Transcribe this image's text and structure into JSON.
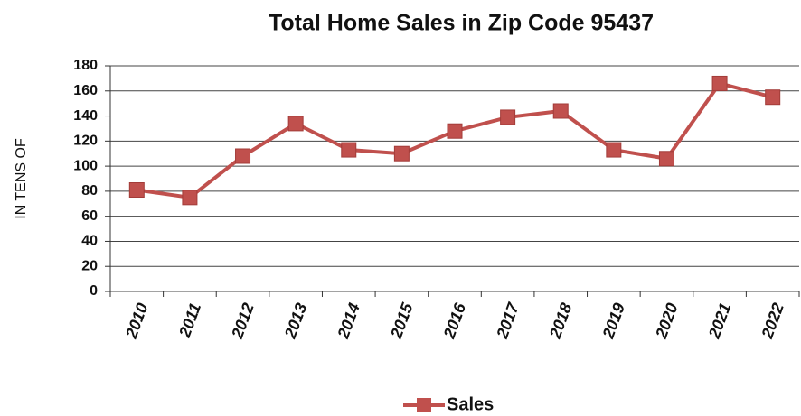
{
  "chart_data": {
    "type": "line",
    "title": "Total Home Sales in Zip Code 95437",
    "y_label": "IN TENS OF",
    "categories": [
      "2010",
      "2011",
      "2012",
      "2013",
      "2014",
      "2015",
      "2016",
      "2017",
      "2018",
      "2019",
      "2020",
      "2021",
      "2022"
    ],
    "series": [
      {
        "name": "Sales",
        "color": "#c0504d",
        "values": [
          81,
          75,
          108,
          134,
          113,
          110,
          128,
          139,
          144,
          113,
          106,
          166,
          155
        ]
      }
    ],
    "ylim": [
      0,
      180
    ],
    "yticks": [
      0,
      20,
      40,
      60,
      80,
      100,
      120,
      140,
      160,
      180
    ],
    "grid": true,
    "legend": "bottom"
  }
}
